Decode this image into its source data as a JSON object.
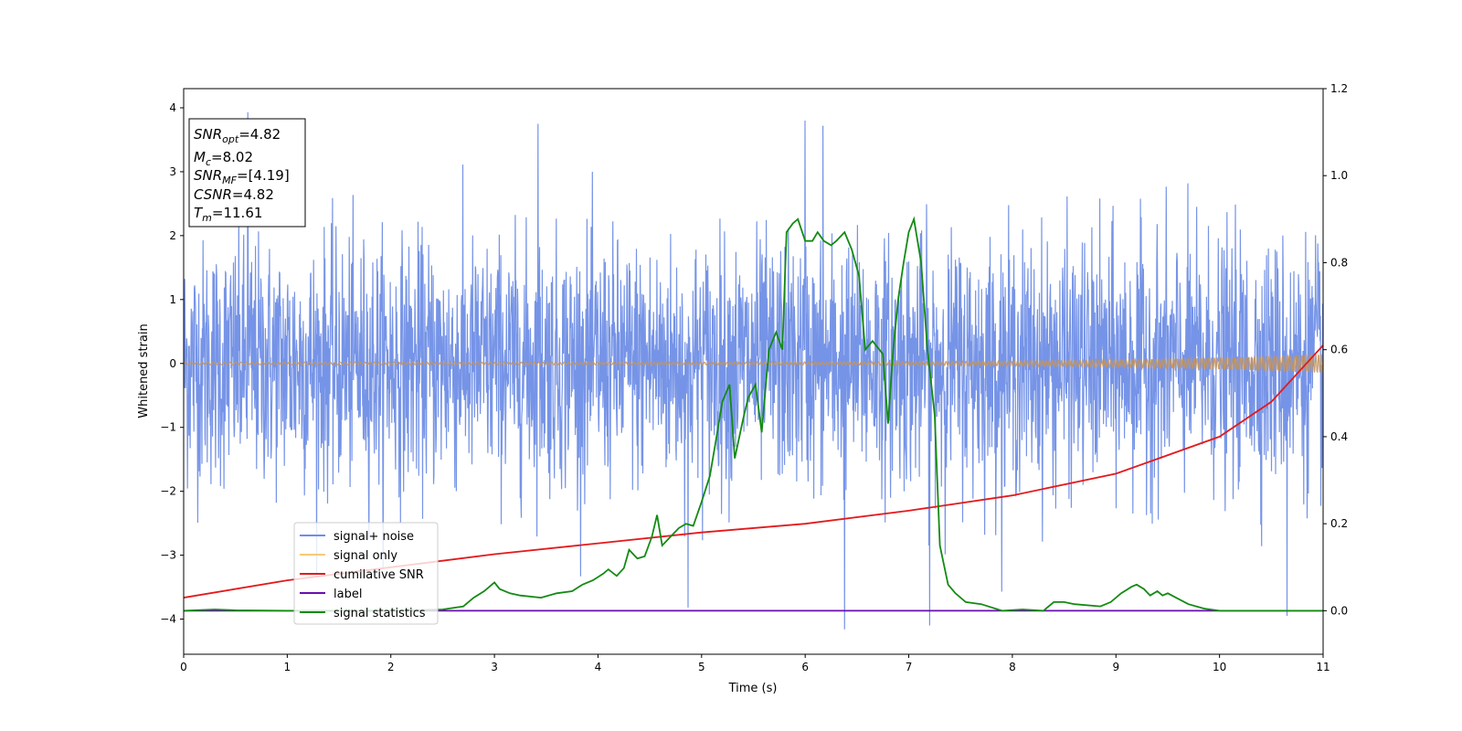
{
  "chart_data": {
    "type": "line",
    "xlabel": "Time (s)",
    "ylabel": "Whitened strain",
    "xlim": [
      0,
      11
    ],
    "ylim": [
      -4.55,
      4.3
    ],
    "y2lim": [
      -0.1,
      1.2
    ],
    "x_ticks": [
      "0",
      "1",
      "2",
      "3",
      "4",
      "5",
      "6",
      "7",
      "8",
      "9",
      "10",
      "11"
    ],
    "y_ticks": [
      "−4",
      "−3",
      "−2",
      "−1",
      "0",
      "1",
      "2",
      "3",
      "4"
    ],
    "y2_ticks": [
      "0.0",
      "0.2",
      "0.4",
      "0.6",
      "0.8",
      "1.0",
      "1.2"
    ],
    "legend_position": "lower-left",
    "grid": false,
    "annotation": {
      "lines": [
        {
          "sym": "SNR",
          "sub": "opt",
          "value": "=4.82"
        },
        {
          "sym": "M",
          "sub": "c",
          "value": "=8.02"
        },
        {
          "sym": "SNR",
          "sub": "MF",
          "value": "=[4.19]"
        },
        {
          "sym": "CSNR",
          "sub": "",
          "value": "=4.82"
        },
        {
          "sym": "T",
          "sub": "m",
          "value": "=11.61"
        }
      ]
    },
    "series": [
      {
        "name": "signal+ noise",
        "color": "#6f8ee6",
        "axis": "left",
        "kind": "noise",
        "sigma": 0.95,
        "envelope_max": 3.8,
        "envelope_min": -3.7,
        "peaks": [
          [
            0.62,
            3.93
          ],
          [
            6.0,
            3.8
          ],
          [
            6.38,
            -4.16
          ],
          [
            7.2,
            -4.1
          ],
          [
            3.42,
            3.75
          ],
          [
            6.17,
            3.72
          ],
          [
            10.65,
            -3.95
          ],
          [
            4.87,
            -3.82
          ]
        ]
      },
      {
        "name": "signal only",
        "color": "#f5c97a",
        "axis": "left",
        "kind": "chirp",
        "amplitude_start": 0.02,
        "amplitude_end": 0.15
      },
      {
        "name": "cumilative SNR",
        "color": "#e31a1c",
        "axis": "right",
        "x": [
          0,
          1,
          2,
          3,
          4,
          5,
          6,
          7,
          8,
          9,
          10,
          10.5,
          11
        ],
        "y": [
          0.03,
          0.07,
          0.1,
          0.13,
          0.155,
          0.18,
          0.2,
          0.23,
          0.265,
          0.315,
          0.4,
          0.48,
          0.61
        ]
      },
      {
        "name": "label",
        "color": "#6a0dad",
        "axis": "right",
        "x": [
          0,
          11
        ],
        "y": [
          0.0,
          0.0
        ]
      },
      {
        "name": "signal statistics",
        "color": "#138a13",
        "axis": "right",
        "x": [
          0,
          0.3,
          0.5,
          1.0,
          2.0,
          2.5,
          2.7,
          2.8,
          2.9,
          3.0,
          3.05,
          3.15,
          3.25,
          3.45,
          3.6,
          3.75,
          3.85,
          3.95,
          4.05,
          4.1,
          4.18,
          4.25,
          4.3,
          4.38,
          4.45,
          4.52,
          4.57,
          4.62,
          4.7,
          4.78,
          4.85,
          4.92,
          5.0,
          5.08,
          5.13,
          5.2,
          5.27,
          5.32,
          5.4,
          5.45,
          5.52,
          5.58,
          5.65,
          5.72,
          5.78,
          5.82,
          5.88,
          5.93,
          6.0,
          6.07,
          6.12,
          6.18,
          6.25,
          6.3,
          6.38,
          6.45,
          6.52,
          6.58,
          6.65,
          6.75,
          6.8,
          6.85,
          6.9,
          6.95,
          7.0,
          7.05,
          7.12,
          7.18,
          7.25,
          7.3,
          7.38,
          7.45,
          7.55,
          7.7,
          7.9,
          8.1,
          8.3,
          8.4,
          8.5,
          8.6,
          8.85,
          8.95,
          9.05,
          9.15,
          9.2,
          9.27,
          9.33,
          9.4,
          9.45,
          9.5,
          9.58,
          9.7,
          9.85,
          10.0,
          10.5,
          11.0
        ],
        "y": [
          0.0,
          0.003,
          0.001,
          0.0,
          0.0,
          0.003,
          0.01,
          0.03,
          0.045,
          0.065,
          0.05,
          0.04,
          0.035,
          0.03,
          0.04,
          0.045,
          0.06,
          0.07,
          0.085,
          0.095,
          0.08,
          0.098,
          0.14,
          0.12,
          0.125,
          0.17,
          0.22,
          0.15,
          0.17,
          0.19,
          0.2,
          0.195,
          0.25,
          0.31,
          0.38,
          0.48,
          0.52,
          0.35,
          0.44,
          0.49,
          0.52,
          0.41,
          0.6,
          0.64,
          0.6,
          0.87,
          0.89,
          0.9,
          0.85,
          0.85,
          0.87,
          0.85,
          0.84,
          0.85,
          0.87,
          0.83,
          0.77,
          0.6,
          0.62,
          0.59,
          0.43,
          0.6,
          0.72,
          0.8,
          0.87,
          0.9,
          0.8,
          0.6,
          0.45,
          0.15,
          0.06,
          0.04,
          0.02,
          0.015,
          0.0,
          0.003,
          0.0,
          0.02,
          0.02,
          0.015,
          0.01,
          0.02,
          0.04,
          0.055,
          0.06,
          0.05,
          0.035,
          0.045,
          0.035,
          0.04,
          0.03,
          0.015,
          0.005,
          0.0,
          0.0,
          0.0
        ]
      }
    ]
  }
}
